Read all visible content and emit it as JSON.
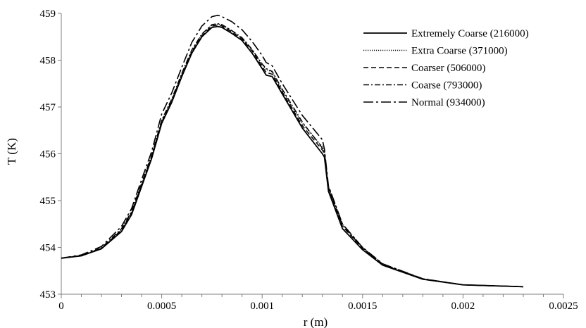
{
  "chart_data": {
    "type": "line",
    "xlabel": "r (m)",
    "ylabel": "T (K)",
    "xlim": [
      0,
      0.0025
    ],
    "ylim": [
      453,
      459
    ],
    "x_ticks": [
      "0",
      "0.0005",
      "0.001",
      "0.0015",
      "0.002",
      "0.0025"
    ],
    "y_ticks": [
      "453",
      "454",
      "455",
      "456",
      "457",
      "458",
      "459"
    ],
    "grid": false,
    "legend_position": "top-right",
    "series": [
      {
        "name": "Extremely Coarse (216000)",
        "dash": "solid",
        "x": [
          0,
          0.0001,
          0.0002,
          0.0003,
          0.00035,
          0.0004,
          0.00045,
          0.0005,
          0.00055,
          0.0006,
          0.00065,
          0.0007,
          0.00075,
          0.00078,
          0.0008,
          0.00085,
          0.0009,
          0.00095,
          0.001,
          0.00102,
          0.00105,
          0.0011,
          0.0012,
          0.0013,
          0.00131,
          0.00133,
          0.0014,
          0.0015,
          0.0016,
          0.0018,
          0.002,
          0.0023
        ],
        "y": [
          453.77,
          453.82,
          453.97,
          454.34,
          454.7,
          455.3,
          455.9,
          456.65,
          457.1,
          457.65,
          458.15,
          458.5,
          458.7,
          458.72,
          458.7,
          458.57,
          458.42,
          458.15,
          457.82,
          457.68,
          457.65,
          457.28,
          456.55,
          456.0,
          455.93,
          455.2,
          454.4,
          453.95,
          453.62,
          453.32,
          453.2,
          453.16
        ]
      },
      {
        "name": "Extra Coarse (371000)",
        "dash": "dotted",
        "x": [
          0,
          0.0001,
          0.0002,
          0.0003,
          0.00035,
          0.0004,
          0.00045,
          0.0005,
          0.00055,
          0.0006,
          0.00065,
          0.0007,
          0.00075,
          0.00078,
          0.0008,
          0.00085,
          0.0009,
          0.00095,
          0.001,
          0.00102,
          0.00105,
          0.0011,
          0.0012,
          0.0013,
          0.00131,
          0.00133,
          0.0014,
          0.0015,
          0.0016,
          0.0018,
          0.002,
          0.0023
        ],
        "y": [
          453.77,
          453.82,
          453.98,
          454.38,
          454.75,
          455.35,
          455.95,
          456.7,
          457.15,
          457.7,
          458.2,
          458.55,
          458.75,
          458.77,
          458.75,
          458.62,
          458.47,
          458.22,
          457.9,
          457.8,
          457.75,
          457.35,
          456.65,
          456.15,
          456.05,
          455.3,
          454.5,
          454.0,
          453.65,
          453.33,
          453.2,
          453.16
        ]
      },
      {
        "name": "Coarser (506000)",
        "dash": "dashed",
        "x": [
          0,
          0.0001,
          0.0002,
          0.0003,
          0.00035,
          0.0004,
          0.00045,
          0.0005,
          0.00055,
          0.0006,
          0.00065,
          0.0007,
          0.00075,
          0.00078,
          0.0008,
          0.00085,
          0.0009,
          0.00095,
          0.001,
          0.00102,
          0.00105,
          0.0011,
          0.0012,
          0.0013,
          0.00131,
          0.00133,
          0.0014,
          0.0015,
          0.0016,
          0.0018,
          0.002,
          0.0023
        ],
        "y": [
          453.77,
          453.82,
          453.98,
          454.37,
          454.73,
          455.33,
          455.93,
          456.68,
          457.13,
          457.68,
          458.18,
          458.52,
          458.73,
          458.75,
          458.73,
          458.6,
          458.45,
          458.2,
          457.86,
          457.74,
          457.7,
          457.32,
          456.6,
          456.08,
          456.0,
          455.25,
          454.45,
          453.98,
          453.63,
          453.32,
          453.2,
          453.16
        ]
      },
      {
        "name": "Coarse (793000)",
        "dash": "dashdot",
        "x": [
          0,
          0.0001,
          0.0002,
          0.0003,
          0.00035,
          0.0004,
          0.00045,
          0.0005,
          0.00055,
          0.0006,
          0.00065,
          0.0007,
          0.00075,
          0.00078,
          0.0008,
          0.00085,
          0.0009,
          0.00095,
          0.001,
          0.00102,
          0.00105,
          0.0011,
          0.0012,
          0.0013,
          0.00131,
          0.00133,
          0.0014,
          0.0015,
          0.0016,
          0.0018,
          0.002,
          0.0023
        ],
        "y": [
          453.77,
          453.83,
          453.99,
          454.4,
          454.77,
          455.37,
          455.97,
          456.72,
          457.17,
          457.72,
          458.22,
          458.56,
          458.76,
          458.78,
          458.76,
          458.63,
          458.48,
          458.23,
          457.92,
          457.82,
          457.76,
          457.38,
          456.68,
          456.12,
          456.05,
          455.28,
          454.47,
          453.99,
          453.64,
          453.33,
          453.2,
          453.16
        ]
      },
      {
        "name": "Normal (934000)",
        "dash": "longdashdot",
        "x": [
          0,
          0.0001,
          0.0002,
          0.0003,
          0.00035,
          0.0004,
          0.00045,
          0.0005,
          0.00055,
          0.0006,
          0.00065,
          0.0007,
          0.00075,
          0.00078,
          0.0008,
          0.00085,
          0.0009,
          0.00095,
          0.001,
          0.00102,
          0.00105,
          0.0011,
          0.0012,
          0.0013,
          0.00131,
          0.00133,
          0.0014,
          0.0015,
          0.0016,
          0.0018,
          0.002,
          0.0023
        ],
        "y": [
          453.77,
          453.84,
          454.02,
          454.45,
          454.83,
          455.45,
          456.05,
          456.85,
          457.3,
          457.85,
          458.38,
          458.73,
          458.93,
          458.96,
          458.93,
          458.82,
          458.65,
          458.4,
          458.1,
          457.95,
          457.88,
          457.5,
          456.82,
          456.3,
          456.1,
          455.32,
          454.5,
          454.0,
          453.65,
          453.33,
          453.2,
          453.16
        ]
      }
    ]
  }
}
